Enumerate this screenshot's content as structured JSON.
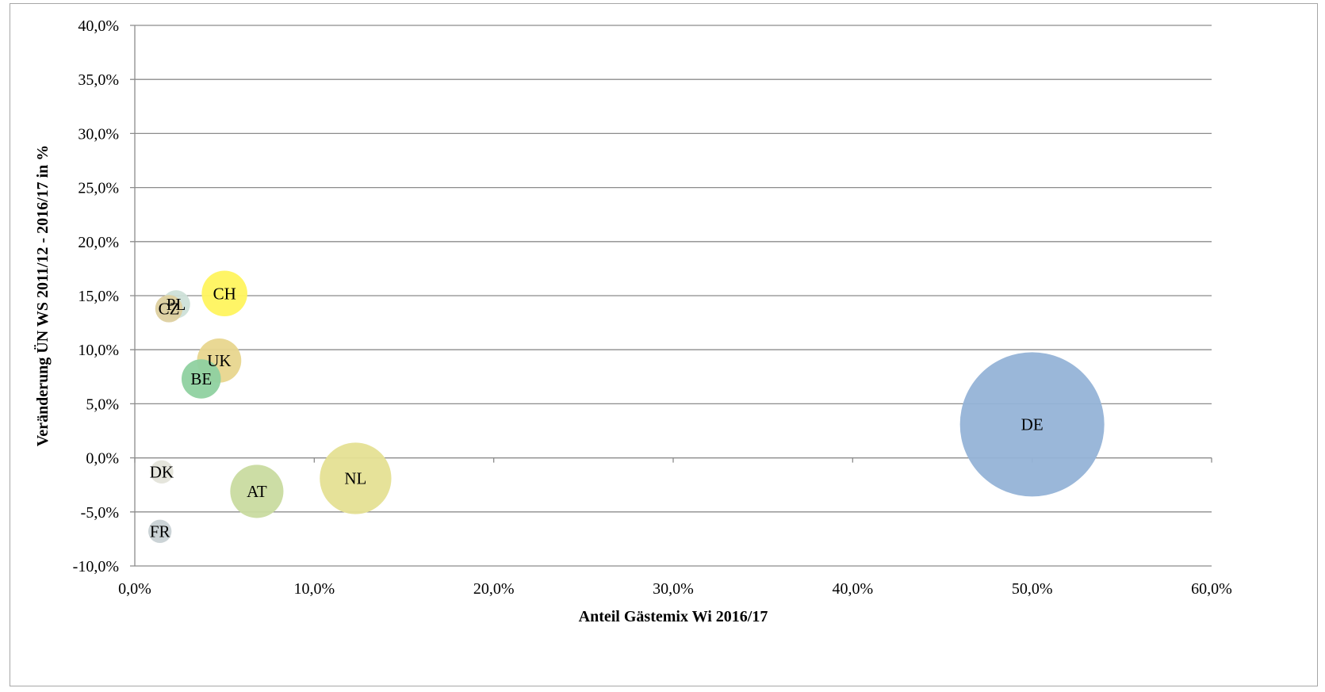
{
  "chart_data": {
    "type": "scatter",
    "subtype": "bubble",
    "xlabel": "Anteil Gästemix Wi 2016/17",
    "ylabel": "Veränderung ÜN WS 2011/12 - 2016/17 in %",
    "xlim": [
      0,
      60
    ],
    "ylim": [
      -10,
      40
    ],
    "x_ticks": [
      "0,0%",
      "10,0%",
      "20,0%",
      "30,0%",
      "40,0%",
      "50,0%",
      "60,0%"
    ],
    "y_ticks": [
      "-10,0%",
      "-5,0%",
      "0,0%",
      "5,0%",
      "10,0%",
      "15,0%",
      "20,0%",
      "25,0%",
      "30,0%",
      "35,0%",
      "40,0%"
    ],
    "grid": "horizontal",
    "points": [
      {
        "label": "DE",
        "x": 50.0,
        "y": 3.1,
        "size": 50.0,
        "color": "#95b3d7"
      },
      {
        "label": "NL",
        "x": 12.3,
        "y": -1.9,
        "size": 12.3,
        "color": "#e5e094"
      },
      {
        "label": "AT",
        "x": 6.8,
        "y": -3.1,
        "size": 6.8,
        "color": "#c9dba0"
      },
      {
        "label": "CH",
        "x": 5.0,
        "y": 15.2,
        "size": 5.0,
        "color": "#fff45e"
      },
      {
        "label": "UK",
        "x": 4.7,
        "y": 9.0,
        "size": 4.7,
        "color": "#e8d68e"
      },
      {
        "label": "BE",
        "x": 3.7,
        "y": 7.3,
        "size": 3.7,
        "color": "#8fd1a0"
      },
      {
        "label": "PL",
        "x": 2.3,
        "y": 14.2,
        "size": 1.9,
        "color": "#cde0d8"
      },
      {
        "label": "CZ",
        "x": 1.9,
        "y": 13.8,
        "size": 1.8,
        "color": "#ddd0a0"
      },
      {
        "label": "DK",
        "x": 1.5,
        "y": -1.3,
        "size": 1.3,
        "color": "#e4e4da"
      },
      {
        "label": "FR",
        "x": 1.4,
        "y": -6.8,
        "size": 1.3,
        "color": "#c8d1d4"
      }
    ]
  }
}
